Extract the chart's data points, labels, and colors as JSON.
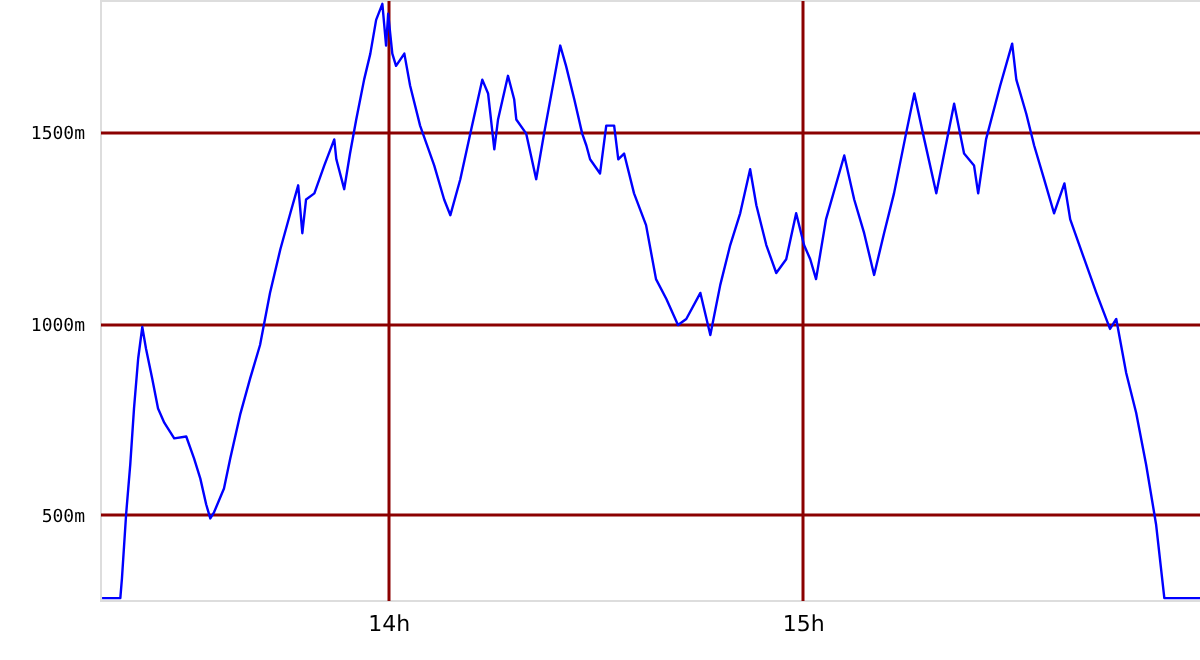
{
  "chart_data": {
    "type": "line",
    "x": [
      13.31,
      13.354,
      13.358,
      13.368,
      13.378,
      13.387,
      13.397,
      13.407,
      13.416,
      13.431,
      13.445,
      13.46,
      13.484,
      13.513,
      13.532,
      13.547,
      13.561,
      13.571,
      13.58,
      13.604,
      13.619,
      13.643,
      13.667,
      13.691,
      13.715,
      13.74,
      13.764,
      13.783,
      13.793,
      13.802,
      13.822,
      13.846,
      13.87,
      13.875,
      13.894,
      13.908,
      13.923,
      13.942,
      13.957,
      13.971,
      13.986,
      13.995,
      14.0,
      14.01,
      14.019,
      14.039,
      14.053,
      14.077,
      14.111,
      14.135,
      14.15,
      14.174,
      14.198,
      14.227,
      14.241,
      14.256,
      14.265,
      14.289,
      14.304,
      14.309,
      14.333,
      14.357,
      14.376,
      14.4,
      14.415,
      14.429,
      14.449,
      14.468,
      14.478,
      14.487,
      14.511,
      14.526,
      14.545,
      14.555,
      14.569,
      14.593,
      14.622,
      14.646,
      14.671,
      14.699,
      14.719,
      14.753,
      14.777,
      14.801,
      14.825,
      14.849,
      14.873,
      14.888,
      14.912,
      14.936,
      14.96,
      14.984,
      15.003,
      15.018,
      15.032,
      15.056,
      15.1,
      15.124,
      15.148,
      15.172,
      15.196,
      15.22,
      15.249,
      15.269,
      15.293,
      15.322,
      15.341,
      15.365,
      15.389,
      15.413,
      15.423,
      15.442,
      15.476,
      15.505,
      15.515,
      15.539,
      15.558,
      15.582,
      15.606,
      15.631,
      15.645,
      15.679,
      15.708,
      15.741,
      15.756,
      15.78,
      15.804,
      15.828,
      15.852,
      15.872,
      15.958
    ],
    "series": [
      {
        "color": "#0000ff",
        "values": [
          283,
          283,
          335,
          502,
          632,
          778,
          908,
          991,
          934,
          856,
          778,
          741,
          700,
          705,
          647,
          595,
          528,
          491,
          507,
          569,
          647,
          762,
          856,
          944,
          1080,
          1194,
          1288,
          1361,
          1236,
          1324,
          1340,
          1413,
          1481,
          1429,
          1351,
          1444,
          1533,
          1637,
          1705,
          1793,
          1835,
          1726,
          1809,
          1705,
          1673,
          1705,
          1621,
          1517,
          1413,
          1324,
          1283,
          1377,
          1496,
          1637,
          1601,
          1455,
          1533,
          1647,
          1585,
          1533,
          1496,
          1377,
          1496,
          1637,
          1726,
          1673,
          1585,
          1496,
          1465,
          1429,
          1392,
          1517,
          1517,
          1429,
          1444,
          1340,
          1257,
          1116,
          1064,
          996,
          1012,
          1080,
          970,
          1101,
          1205,
          1288,
          1403,
          1309,
          1205,
          1132,
          1168,
          1288,
          1205,
          1168,
          1116,
          1272,
          1439,
          1324,
          1236,
          1127,
          1236,
          1340,
          1496,
          1601,
          1481,
          1340,
          1444,
          1574,
          1444,
          1413,
          1340,
          1481,
          1621,
          1731,
          1637,
          1548,
          1465,
          1377,
          1288,
          1366,
          1272,
          1168,
          1080,
          986,
          1012,
          871,
          767,
          632,
          476,
          283,
          283
        ]
      }
    ],
    "xlim": [
      13.305,
      15.958
    ],
    "ylim": [
      278,
      1845
    ],
    "xticks": [
      {
        "value": 14,
        "label": "14h"
      },
      {
        "value": 15,
        "label": "15h"
      }
    ],
    "yticks": [
      {
        "value": 500,
        "label": "500m"
      },
      {
        "value": 1000,
        "label": "1000m"
      },
      {
        "value": 1500,
        "label": "1500m"
      }
    ],
    "grid": true
  }
}
